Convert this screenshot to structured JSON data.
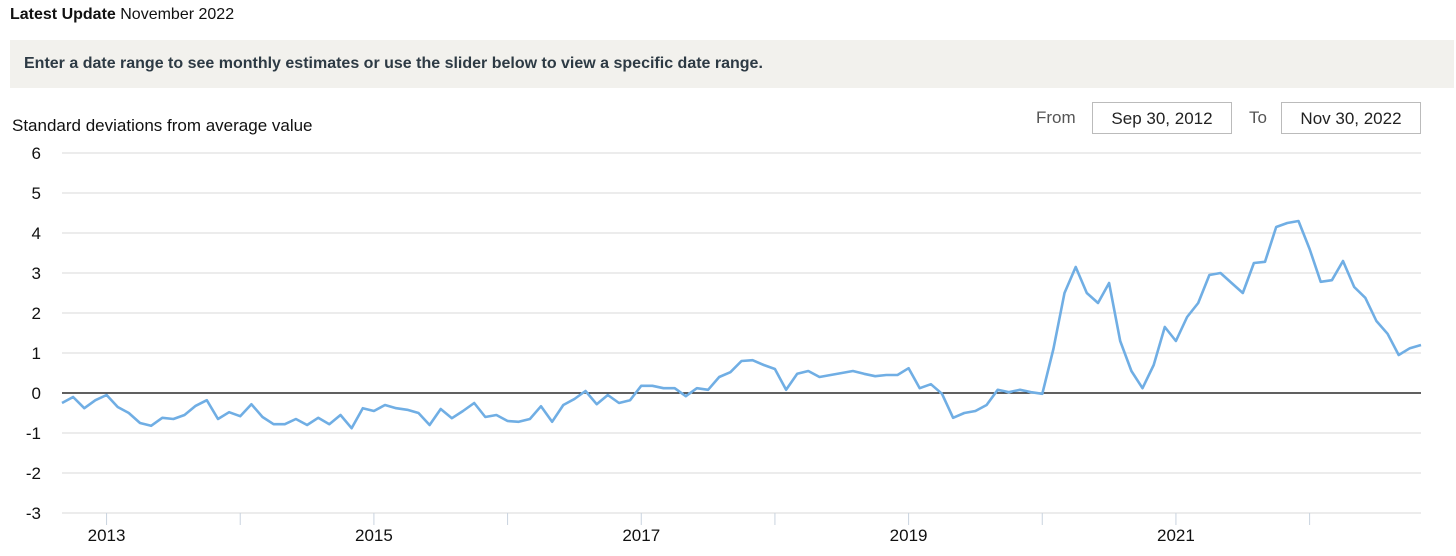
{
  "header": {
    "latest_label": "Latest Update",
    "latest_value": "November 2022"
  },
  "banner": {
    "text": "Enter a date range to see monthly estimates or use the slider below to view a specific date range."
  },
  "range": {
    "from_label": "From",
    "from_value": "Sep 30, 2012",
    "to_label": "To",
    "to_value": "Nov 30, 2022"
  },
  "colors": {
    "line": "#70aee4",
    "grid": "#d9d9d9",
    "zero": "#000000"
  },
  "chart_data": {
    "type": "line",
    "ylabel": "Standard deviations from average value",
    "xlabel": "",
    "ylim": [
      -3,
      6
    ],
    "yticks": [
      "6",
      "5",
      "4",
      "3",
      "2",
      "1",
      "0",
      "-1",
      "-2",
      "-3"
    ],
    "xticks": [
      "2013",
      "2015",
      "2017",
      "2019",
      "2021"
    ],
    "grid": true,
    "x_start": "2012-09",
    "x_end": "2022-11",
    "series": [
      {
        "name": "",
        "values": [
          -0.25,
          -0.1,
          -0.38,
          -0.18,
          -0.05,
          -0.35,
          -0.5,
          -0.75,
          -0.82,
          -0.62,
          -0.65,
          -0.55,
          -0.32,
          -0.18,
          -0.65,
          -0.48,
          -0.58,
          -0.28,
          -0.6,
          -0.78,
          -0.78,
          -0.65,
          -0.8,
          -0.62,
          -0.78,
          -0.55,
          -0.88,
          -0.38,
          -0.45,
          -0.3,
          -0.38,
          -0.42,
          -0.5,
          -0.8,
          -0.4,
          -0.63,
          -0.45,
          -0.25,
          -0.6,
          -0.55,
          -0.7,
          -0.72,
          -0.65,
          -0.33,
          -0.72,
          -0.3,
          -0.15,
          0.05,
          -0.28,
          -0.05,
          -0.25,
          -0.18,
          0.18,
          0.18,
          0.12,
          0.12,
          -0.08,
          0.12,
          0.08,
          0.4,
          0.52,
          0.8,
          0.82,
          0.7,
          0.6,
          0.08,
          0.48,
          0.55,
          0.4,
          0.45,
          0.5,
          0.55,
          0.48,
          0.42,
          0.45,
          0.45,
          0.62,
          0.12,
          0.22,
          -0.02,
          -0.62,
          -0.5,
          -0.45,
          -0.3,
          0.08,
          0.02,
          0.08,
          0.02,
          -0.02,
          1.1,
          2.5,
          3.15,
          2.5,
          2.25,
          2.75,
          1.3,
          0.55,
          0.12,
          0.7,
          1.65,
          1.3,
          1.9,
          2.25,
          2.95,
          3.0,
          2.75,
          2.5,
          3.25,
          3.28,
          4.15,
          4.25,
          4.3,
          3.6,
          2.78,
          2.82,
          3.3,
          2.65,
          2.38,
          1.8,
          1.48,
          0.95,
          1.12,
          1.2
        ]
      }
    ]
  }
}
